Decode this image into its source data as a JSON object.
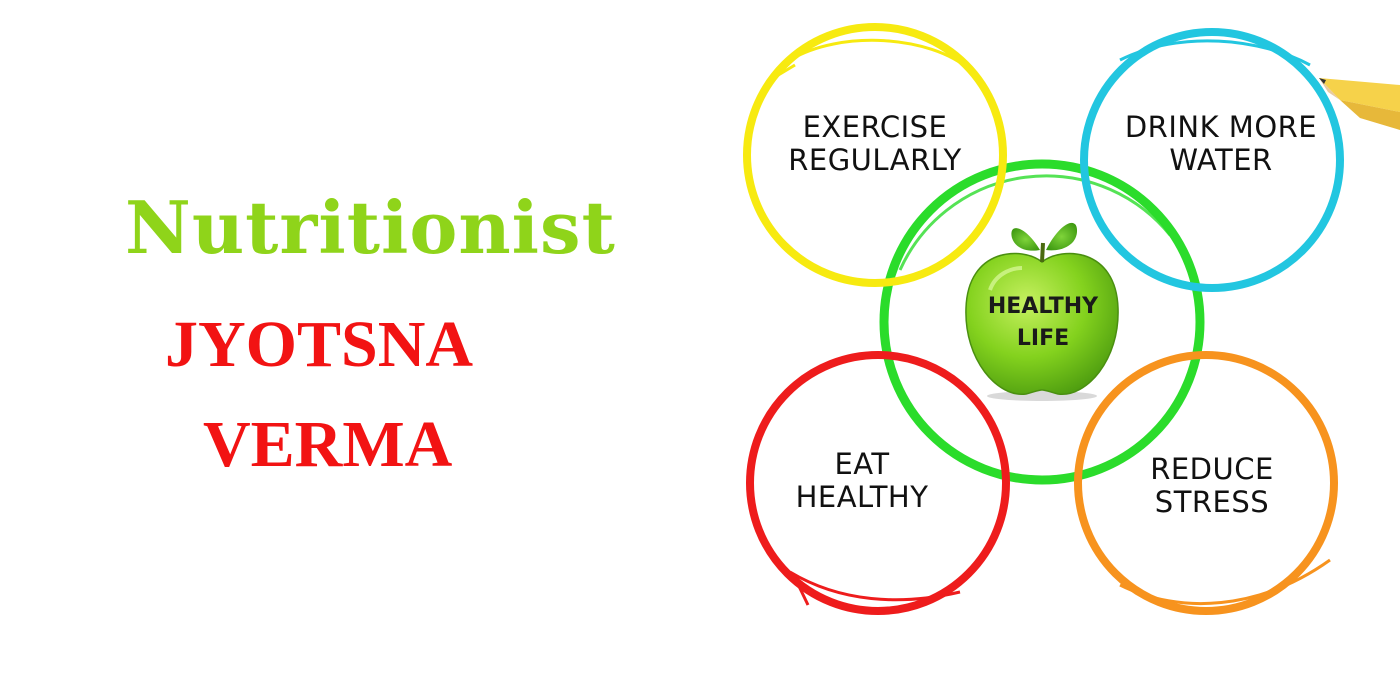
{
  "heading": {
    "title": "Nutritionist",
    "name_first": "JYOTSNA",
    "name_last": "VERMA"
  },
  "diagram": {
    "center": {
      "line1": "HEALTHY",
      "line2": "LIFE"
    },
    "exercise": {
      "line1": "EXERCISE",
      "line2": "REGULARLY"
    },
    "water": {
      "line1": "DRINK MORE",
      "line2": "WATER"
    },
    "eat": {
      "line1": "EAT",
      "line2": "HEALTHY"
    },
    "stress": {
      "line1": "REDUCE",
      "line2": "STRESS"
    }
  },
  "colors": {
    "title": "#8fd41a",
    "name": "#f21313",
    "ring_green": "#2bdc2b",
    "ring_yellow": "#f7ea10",
    "ring_cyan": "#22c6e0",
    "ring_red": "#ee1c1c",
    "ring_orange": "#f7931e",
    "apple": "#7fcf1f"
  },
  "icons": [
    "green-apple-icon",
    "pencil-icon"
  ]
}
